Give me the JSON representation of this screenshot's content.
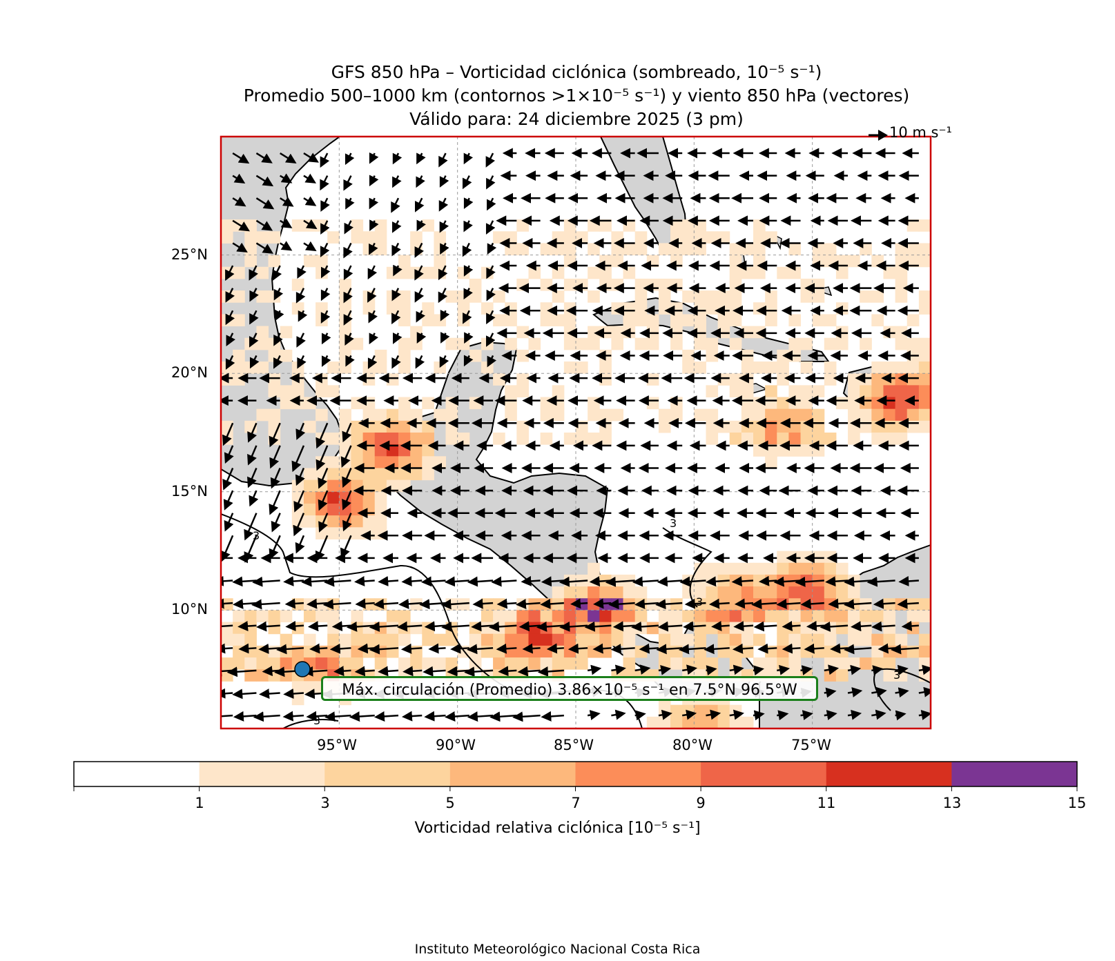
{
  "title": {
    "line1": "GFS 850 hPa – Vorticidad ciclónica (sombreado, 10⁻⁵ s⁻¹)",
    "line2": "Promedio 500–1000 km (contornos >1×10⁻⁵ s⁻¹) y viento 850 hPa (vectores)",
    "line3": "Válido para: 24 diciembre 2025 (3 pm)"
  },
  "quiver_key": "10 m s⁻¹",
  "lat_labels": [
    "25°N",
    "20°N",
    "15°N",
    "10°N"
  ],
  "lon_labels": [
    "95°W",
    "90°W",
    "85°W",
    "80°W",
    "75°W"
  ],
  "max_annotation": "Máx. circulación (Promedio) 3.86×10⁻⁵ s⁻¹ en 7.5°N 96.5°W",
  "contour_label": "3",
  "colorbar": {
    "label": "Vorticidad relativa ciclónica [10⁻⁵ s⁻¹]",
    "ticks": [
      "1",
      "3",
      "5",
      "7",
      "9",
      "11",
      "13",
      "15"
    ],
    "bins": [
      {
        "range": "<1",
        "color": "#ffffff"
      },
      {
        "range": "1-3",
        "color": "#fee6ca"
      },
      {
        "range": "3-5",
        "color": "#fdd49e"
      },
      {
        "range": "5-7",
        "color": "#fdb87c"
      },
      {
        "range": "7-9",
        "color": "#fc8d59"
      },
      {
        "range": "9-11",
        "color": "#ef6548"
      },
      {
        "range": "11-13",
        "color": "#d7301f"
      },
      {
        "range": "13-15",
        "color": "#7b3593"
      }
    ]
  },
  "map": {
    "extent": {
      "lon": [
        -100,
        -70
      ],
      "lat": [
        5,
        30
      ]
    },
    "land_color": "#d3d3d3",
    "frame_color": "#cc0000",
    "max_point": {
      "lat": 7.5,
      "lon": -96.5,
      "color": "#1f77b4"
    }
  },
  "credit": "Instituto Meteorológico Nacional Costa Rica"
}
